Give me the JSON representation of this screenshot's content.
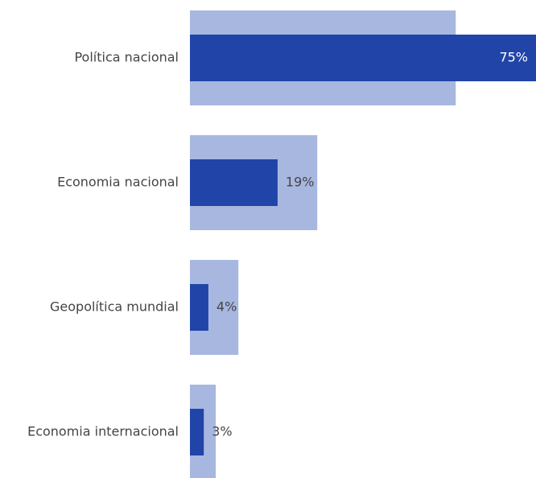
{
  "chart_data": {
    "type": "bar",
    "orientation": "horizontal",
    "categories": [
      "Política nacional",
      "Economia nacional",
      "Geopolítica mundial",
      "Economia internacional"
    ],
    "series": [
      {
        "color": "#a7b7e0",
        "values": [
          57.6,
          27.6,
          10.5,
          5.6
        ]
      },
      {
        "color": "#2144a8",
        "values": [
          75,
          19,
          4,
          3
        ],
        "value_labels": [
          "75%",
          "19%",
          "4%",
          "3%"
        ]
      }
    ],
    "xlim": [
      0,
      75
    ]
  }
}
